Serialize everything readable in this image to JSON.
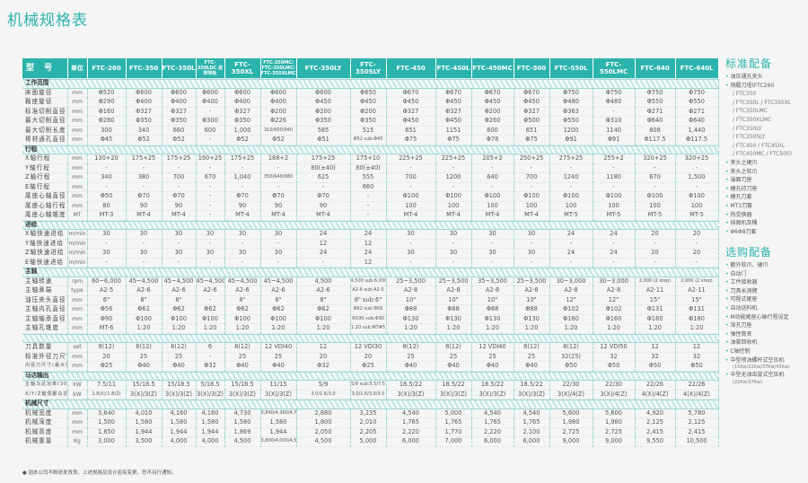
{
  "title": "机械规格表",
  "header": {
    "label": "型 号",
    "unit": "单位",
    "models": [
      "FTC-260",
      "FTC-350",
      "FTC-350L",
      "FTC-350LDC 皮带导轨",
      "FTC-350XL",
      "FTC-350MC/ FTC-350LMC/ FTC-350XLMC",
      "FTC-350LY",
      "FTC-350SLY",
      "FTC-450",
      "FTC-450L",
      "FTC-450MC",
      "FTC-500",
      "FTC-550L",
      "FTC-550LMC",
      "FTC-640",
      "FTC-640L"
    ]
  },
  "rows": [
    {
      "section": "工作范围"
    },
    {
      "label": "床面旋径",
      "unit": "mm",
      "values": [
        "Φ520",
        "Φ600",
        "Φ600",
        "Φ600",
        "Φ600",
        "Φ600",
        "Φ600",
        "Φ650",
        "Φ670",
        "Φ670",
        "Φ670",
        "Φ670",
        "Φ750",
        "Φ750",
        "Φ750",
        "Φ750"
      ]
    },
    {
      "label": "鞍座旋径",
      "unit": "mm",
      "values": [
        "Φ290",
        "Φ400",
        "Φ400",
        "Φ400",
        "Φ400",
        "Φ400",
        "Φ450",
        "Φ450",
        "Φ450",
        "Φ450",
        "Φ450",
        "Φ450",
        "Φ480",
        "Φ480",
        "Φ550",
        "Φ550"
      ]
    },
    {
      "label": "标准切削直径",
      "unit": "mm",
      "values": [
        "Φ160",
        "Φ327",
        "Φ327",
        "-",
        "Φ327",
        "Φ200",
        "Φ200",
        "Φ200",
        "Φ327",
        "Φ327",
        "Φ200",
        "Φ327",
        "Φ363",
        "-",
        "Φ271",
        "Φ271"
      ]
    },
    {
      "label": "最大切削直径",
      "unit": "mm",
      "values": [
        "Φ260",
        "Φ350",
        "Φ350",
        "Φ300",
        "Φ350",
        "Φ226",
        "Φ350",
        "Φ350",
        "Φ450",
        "Φ450",
        "Φ260",
        "Φ500",
        "Φ550",
        "Φ310",
        "Φ640",
        "Φ640"
      ]
    },
    {
      "label": "最大切削长度",
      "unit": "mm",
      "values": [
        "300",
        "340",
        "660",
        "600",
        "1,000",
        "310/600/940",
        "585",
        "515",
        "651",
        "1151",
        "600",
        "651",
        "1200",
        "1140",
        "808",
        "1,440"
      ]
    },
    {
      "label": "棒材通孔直径",
      "unit": "mm",
      "values": [
        "Φ45",
        "Φ52",
        "Φ52",
        "-",
        "Φ52",
        "Φ52",
        "Φ51",
        "Φ52 sub:Φ45",
        "Φ75",
        "Φ75",
        "Φ78",
        "Φ75",
        "Φ91",
        "Φ91",
        "Φ117.5",
        "Φ117.5"
      ]
    },
    {
      "section": "行程"
    },
    {
      "label": "X轴行程",
      "unit": "mm",
      "values": [
        "130+20",
        "175+25",
        "175+25",
        "190+25",
        "175+25",
        "188+2",
        "175+25",
        "175+10",
        "225+25",
        "225+25",
        "205+2",
        "250+25",
        "275+25",
        "255+2",
        "320+25",
        "320+25"
      ]
    },
    {
      "label": "Y轴行程",
      "unit": "mm",
      "values": [
        "-",
        "-",
        "-",
        "-",
        "-",
        "-",
        "80(±40)",
        "80(±40)",
        "-",
        "-",
        "-",
        "-",
        "-",
        "-",
        "-",
        "-"
      ]
    },
    {
      "label": "Z轴行程",
      "unit": "mm",
      "values": [
        "340",
        "380",
        "700",
        "670",
        "1,040",
        "350/640/980",
        "625",
        "555",
        "700",
        "1200",
        "640",
        "700",
        "1240",
        "1180",
        "870",
        "1,500"
      ]
    },
    {
      "label": "E轴行程",
      "unit": "mm",
      "values": [
        "-",
        "-",
        "-",
        "-",
        "-",
        "-",
        "-",
        "660",
        "-",
        "-",
        "-",
        "-",
        "-",
        "-",
        "-",
        "-"
      ]
    },
    {
      "label": "尾座心轴直径",
      "unit": "mm",
      "values": [
        "Φ50",
        "Φ70",
        "Φ70",
        "-",
        "Φ70",
        "Φ70",
        "Φ70",
        "-",
        "Φ100",
        "Φ100",
        "Φ100",
        "Φ100",
        "Φ100",
        "Φ100",
        "Φ100",
        "Φ100"
      ]
    },
    {
      "label": "尾座心轴行程",
      "unit": "mm",
      "values": [
        "80",
        "90",
        "90",
        "-",
        "90",
        "90",
        "90",
        "-",
        "100",
        "100",
        "100",
        "100",
        "100",
        "100",
        "100",
        "100"
      ]
    },
    {
      "label": "尾座心轴锥度",
      "unit": "MT",
      "values": [
        "MT-3",
        "MT-4",
        "MT-4",
        "-",
        "MT-4",
        "MT-4",
        "MT-4",
        "-",
        "MT-4",
        "MT-4",
        "MT-4",
        "MT-4",
        "MT-5",
        "MT-5",
        "MT-5",
        "MT-5"
      ]
    },
    {
      "section": "进给"
    },
    {
      "label": "X轴快速进给",
      "unit": "m/min",
      "values": [
        "30",
        "30",
        "30",
        "30",
        "30",
        "30",
        "24",
        "24",
        "30",
        "30",
        "30",
        "30",
        "24",
        "24",
        "20",
        "20"
      ]
    },
    {
      "label": "Y轴快速进给",
      "unit": "m/min",
      "values": [
        "-",
        "-",
        "-",
        "-",
        "-",
        "-",
        "12",
        "12",
        "-",
        "-",
        "-",
        "-",
        "-",
        "-",
        "-",
        "-"
      ]
    },
    {
      "label": "Z轴快速进给",
      "unit": "m/min",
      "values": [
        "30",
        "30",
        "30",
        "30",
        "30",
        "30",
        "24",
        "24",
        "30",
        "30",
        "30",
        "30",
        "24",
        "24",
        "20",
        "20"
      ]
    },
    {
      "label": "E轴快速进给",
      "unit": "m/min",
      "values": [
        "-",
        "-",
        "-",
        "-",
        "-",
        "-",
        "-",
        "12",
        "-",
        "-",
        "-",
        "-",
        "-",
        "-",
        "-",
        "-"
      ]
    },
    {
      "section": "主轴"
    },
    {
      "label": "主轴转速",
      "unit": "rpm",
      "values": [
        "60~6,000",
        "45~4,500",
        "45~4,500",
        "45~4,500",
        "45~4,500",
        "45~4,500",
        "4,500",
        "4,500 sub:6,000",
        "25~3,500",
        "25~3,500",
        "35~3,500",
        "25~3,500",
        "30~3,000",
        "30~3,000",
        "2,000 (2 step)",
        "2,000 (2 step)"
      ]
    },
    {
      "label": "主轴鼻端",
      "unit": "type",
      "values": [
        "A2-5",
        "A2-6",
        "A2-6",
        "A2-6",
        "A2-6",
        "A2-6",
        "A2-6",
        "A2-6 sub:A2-5",
        "A2-8",
        "A2-8",
        "A2-8",
        "A2-8",
        "A2-8",
        "A2-8",
        "A2-11",
        "A2-11"
      ]
    },
    {
      "label": "油压夹头直径",
      "unit": "mm",
      "values": [
        "6\"",
        "8\"",
        "8\"",
        "-",
        "8\"",
        "8\"",
        "8\"",
        "8\" sub:6\"",
        "10\"",
        "10\"",
        "10\"",
        "10\"",
        "12\"",
        "12\"",
        "15\"",
        "15\""
      ]
    },
    {
      "label": "主轴内孔直径",
      "unit": "mm",
      "values": [
        "Φ56",
        "Φ62",
        "Φ62",
        "Φ62",
        "Φ62",
        "Φ62",
        "Φ62",
        "Φ62 sub:Φ56",
        "Φ88",
        "Φ88",
        "Φ88",
        "Φ88",
        "Φ102",
        "Φ102",
        "Φ131",
        "Φ131"
      ]
    },
    {
      "label": "主轴轴承直径",
      "unit": "mm",
      "values": [
        "Φ90",
        "Φ100",
        "Φ100",
        "Φ100",
        "Φ100",
        "Φ100",
        "Φ100",
        "Φ100 sub:Φ90",
        "Φ130",
        "Φ130",
        "Φ130",
        "Φ130",
        "Φ160",
        "Φ160",
        "Φ180",
        "Φ180"
      ]
    },
    {
      "label": "主轴孔锥度",
      "unit": "mm",
      "values": [
        "MT-6",
        "1:20",
        "1:20",
        "1:20",
        "1:20",
        "1:20",
        "1:20",
        "1:20 sub:MT#5",
        "1:20",
        "1:20",
        "1:20",
        "1:20",
        "1:20",
        "1:20",
        "1:20",
        "1:20"
      ]
    },
    {
      "section": ""
    },
    {
      "label": "刀具数量",
      "unit": "set",
      "values": [
        "8(12)",
        "8(12)",
        "8(12)",
        "6",
        "8(12)",
        "12 VDI40",
        "12",
        "12 VDI30",
        "8(12)",
        "8(12)",
        "12 VDI40",
        "8(12)",
        "8(12)",
        "12 VDI50",
        "12",
        "12"
      ]
    },
    {
      "label": "标准外径刀尺寸",
      "unit": "mm",
      "values": [
        "20",
        "25",
        "25",
        "-",
        "25",
        "25",
        "20",
        "20",
        "25",
        "25",
        "25",
        "25",
        "32(25)",
        "32",
        "32",
        "32"
      ]
    },
    {
      "label": "内径刀尺寸(最大径)",
      "unit": "mm",
      "values": [
        "Φ25",
        "Φ40",
        "Φ40",
        "Φ32",
        "Φ40",
        "Φ40",
        "Φ32",
        "Φ25",
        "Φ40",
        "Φ40",
        "Φ40",
        "Φ40",
        "Φ50",
        "Φ50",
        "Φ50",
        "Φ50"
      ]
    },
    {
      "section": "马达输出"
    },
    {
      "label": "主轴马达功率(30分)",
      "unit": "kW",
      "values": [
        "7.5/11",
        "15/18.5",
        "15/18.5",
        "5/18.5",
        "15/18.5",
        "11/15",
        "5/9",
        "5/9 sub:5.5/7.5",
        "18.5/22",
        "18.5/22",
        "18.5/22",
        "18.5/22",
        "22/30",
        "22/30",
        "22/26",
        "22/26"
      ]
    },
    {
      "label": "X/Y/Z轴伺服马达",
      "unit": "kW",
      "values": [
        "1.8(X)/1.8(Z)",
        "3(X)/3(Z)",
        "3(X)/3(Z)",
        "3(X)/3(Z)",
        "3(X)/3(Z)",
        "3(X)/3(Z)",
        "3.0/1.6/3.0",
        "3.0/1.6/3.0/3.0",
        "3(X)/3(Z)",
        "3(X)/3(Z)",
        "3(X)/3(Z)",
        "3(X)/3(Z)",
        "3(X)/4(Z)",
        "3(X)/4(Z)",
        "4(X)/4(Z)",
        "4(X)/4(Z)"
      ]
    },
    {
      "section": "机械尺寸"
    },
    {
      "label": "机械宽度",
      "unit": "mm",
      "values": [
        "3,640",
        "4,010",
        "4,160",
        "4,160",
        "4,730",
        "3,840/4,360/4,730",
        "2,880",
        "3,235",
        "4,540",
        "5,000",
        "4,540",
        "4,540",
        "5,600",
        "5,600",
        "4,920",
        "5,780"
      ]
    },
    {
      "label": "机械深度",
      "unit": "mm",
      "values": [
        "1,500",
        "1,580",
        "1,580",
        "1,580",
        "1,580",
        "1,580",
        "1,800",
        "2,010",
        "1,765",
        "1,765",
        "1,765",
        "1,765",
        "1,980",
        "1,980",
        "2,125",
        "2,125"
      ]
    },
    {
      "label": "机械高度",
      "unit": "mm",
      "values": [
        "1,650",
        "1,944",
        "1,944",
        "1,944",
        "1,869",
        "1,944",
        "2,050",
        "2,205",
        "2,220",
        "1,770",
        "2,220",
        "2,100",
        "2,725",
        "2,725",
        "2,415",
        "2,415"
      ]
    },
    {
      "label": "机械重量",
      "unit": "Kg",
      "values": [
        "3,000",
        "3,500",
        "4,000",
        "4,000",
        "4,500",
        "3,800/4,000/4,500",
        "4,500",
        "5,000",
        "6,000",
        "7,000",
        "6,000",
        "6,000",
        "9,000",
        "9,000",
        "9,550",
        "10,500"
      ]
    }
  ],
  "note": "● 因本公司不断研发改良，上述规格及设计若有变更，恕不另行通知。",
  "standard": {
    "title": "标准配备",
    "items": [
      {
        "t": "油压通孔夹头",
        "k": "b"
      },
      {
        "t": "铜履刀塔(FTC260",
        "k": "b"
      },
      {
        "t": "/ FTC350",
        "k": "c"
      },
      {
        "t": "/ FTC350L / FTC350XL",
        "k": "c"
      },
      {
        "t": "/ FTC350LMC",
        "k": "c"
      },
      {
        "t": "/ FTC350XLMC",
        "k": "c"
      },
      {
        "t": "/ FTC350LY",
        "k": "c"
      },
      {
        "t": "/ FTC350SLY",
        "k": "c"
      },
      {
        "t": "/ FTC450 / FTC450L",
        "k": "c"
      },
      {
        "t": "/ FTC450MC / FTC500)",
        "k": "c"
      },
      {
        "t": "夹头之硬爪",
        "k": "b"
      },
      {
        "t": "夹头之软爪",
        "k": "b"
      },
      {
        "t": "端面刀座",
        "k": "b"
      },
      {
        "t": "搪孔持刀座",
        "k": "b"
      },
      {
        "t": "搪孔刀套",
        "k": "b"
      },
      {
        "t": "MT3刀套",
        "k": "b"
      },
      {
        "t": "热交换器",
        "k": "b"
      },
      {
        "t": "排屑机及桶",
        "k": "b"
      },
      {
        "t": "Φ6Φ8刀套",
        "k": "b"
      }
    ]
  },
  "optional": {
    "title": "选购配备",
    "items": [
      {
        "t": "额外软爪、硬爪",
        "k": "b"
      },
      {
        "t": "自动门",
        "k": "b"
      },
      {
        "t": "工件接收器",
        "k": "b"
      },
      {
        "t": "刀具长测臂",
        "k": "b"
      },
      {
        "t": "可程式尾座",
        "k": "b"
      },
      {
        "t": "自动送料机",
        "k": "b"
      },
      {
        "t": "M功能尾座心轴行程设定",
        "k": "b"
      },
      {
        "t": "深孔刀座",
        "k": "b"
      },
      {
        "t": "弹性筒夹",
        "k": "b"
      },
      {
        "t": "油雾回收机",
        "k": "b"
      },
      {
        "t": "C轴控制",
        "k": "b"
      },
      {
        "t": "中型喷油螺杆式空压机",
        "k": "b"
      },
      {
        "t": "(15Kw/22Kw/37Kw/45Kw)",
        "k": "s"
      },
      {
        "t": "中型无油齿旋式空压机",
        "k": "b"
      },
      {
        "t": "(22Kw/37Kw)",
        "k": "s"
      }
    ]
  },
  "colors": {
    "accent": "#2bb3ad",
    "background": "#f5f5f5"
  }
}
